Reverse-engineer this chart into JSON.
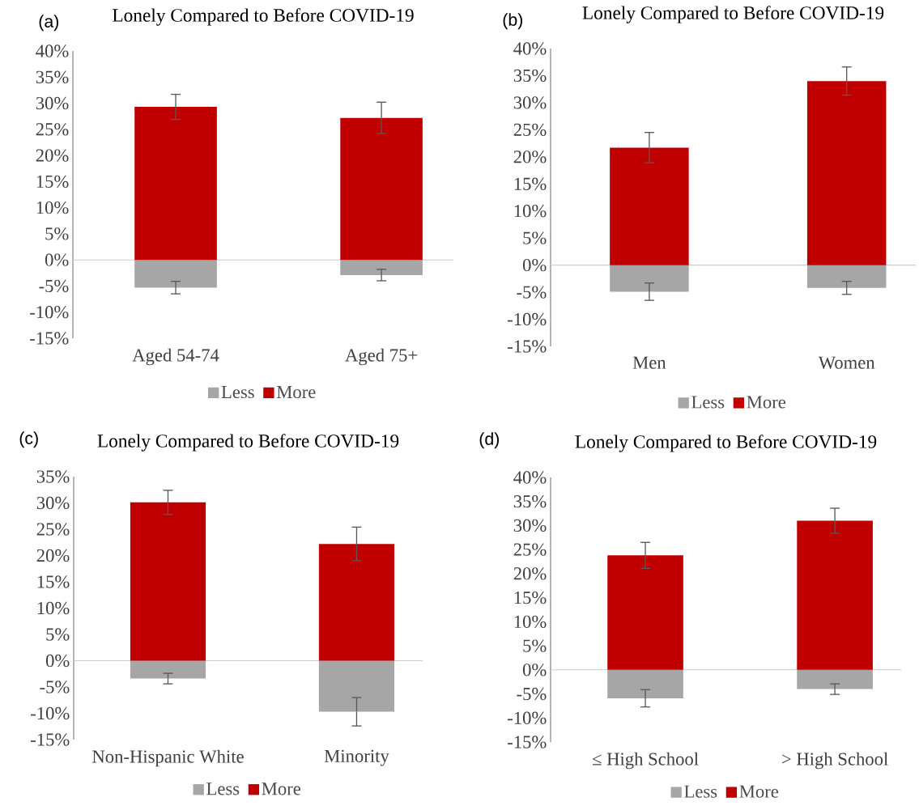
{
  "chart_data": [
    {
      "type": "bar",
      "title": "Lonely Compared to Before COVID-19",
      "annotations": [
        "(a)"
      ],
      "categories": [
        "Aged 54-74",
        "Aged 75+"
      ],
      "stacked": true,
      "legend": "bottom",
      "ylim": [
        -15,
        40
      ],
      "yticks": [
        {
          "value": -15,
          "label": "-15%"
        },
        {
          "value": -10,
          "label": "-10%"
        },
        {
          "value": -5,
          "label": "-5%"
        },
        {
          "value": 0,
          "label": "0%"
        },
        {
          "value": 5,
          "label": "5%"
        },
        {
          "value": 10,
          "label": "10%"
        },
        {
          "value": 15,
          "label": "15%"
        },
        {
          "value": 20,
          "label": "20%"
        },
        {
          "value": 25,
          "label": "25%"
        },
        {
          "value": 30,
          "label": "30%"
        },
        {
          "value": 35,
          "label": "35%"
        },
        {
          "value": 40,
          "label": "40%"
        }
      ],
      "series": [
        {
          "name": "Less",
          "color": "#a6a6a6",
          "values": [
            -5.3,
            -2.9
          ],
          "errors": [
            1.2,
            1.1
          ]
        },
        {
          "name": "More",
          "color": "#c00000",
          "values": [
            29.3,
            27.2
          ],
          "errors": [
            2.4,
            3.0
          ]
        }
      ]
    },
    {
      "type": "bar",
      "title": "Lonely Compared to Before COVID-19",
      "annotations": [
        "(b)"
      ],
      "categories": [
        "Men",
        "Women"
      ],
      "stacked": true,
      "legend": "bottom",
      "ylim": [
        -15,
        40
      ],
      "yticks": [
        {
          "value": -15,
          "label": "-15%"
        },
        {
          "value": -10,
          "label": "-10%"
        },
        {
          "value": -5,
          "label": "-5%"
        },
        {
          "value": 0,
          "label": "0%"
        },
        {
          "value": 5,
          "label": "5%"
        },
        {
          "value": 10,
          "label": "10%"
        },
        {
          "value": 15,
          "label": "15%"
        },
        {
          "value": 20,
          "label": "20%"
        },
        {
          "value": 25,
          "label": "25%"
        },
        {
          "value": 30,
          "label": "30%"
        },
        {
          "value": 35,
          "label": "35%"
        },
        {
          "value": 40,
          "label": "40%"
        }
      ],
      "series": [
        {
          "name": "Less",
          "color": "#a6a6a6",
          "values": [
            -4.9,
            -4.2
          ],
          "errors": [
            1.6,
            1.2
          ]
        },
        {
          "name": "More",
          "color": "#c00000",
          "values": [
            21.7,
            34.0
          ],
          "errors": [
            2.8,
            2.6
          ]
        }
      ]
    },
    {
      "type": "bar",
      "title": "Lonely Compared to Before COVID-19",
      "annotations": [
        "(c)"
      ],
      "categories": [
        "Non-Hispanic White",
        "Minority"
      ],
      "stacked": true,
      "legend": "bottom",
      "ylim": [
        -15,
        35
      ],
      "yticks": [
        {
          "value": -15,
          "label": "-15%"
        },
        {
          "value": -10,
          "label": "-10%"
        },
        {
          "value": -5,
          "label": "-5%"
        },
        {
          "value": 0,
          "label": "0%"
        },
        {
          "value": 5,
          "label": "5%"
        },
        {
          "value": 10,
          "label": "10%"
        },
        {
          "value": 15,
          "label": "15%"
        },
        {
          "value": 20,
          "label": "20%"
        },
        {
          "value": 25,
          "label": "25%"
        },
        {
          "value": 30,
          "label": "30%"
        },
        {
          "value": 35,
          "label": "35%"
        }
      ],
      "series": [
        {
          "name": "Less",
          "color": "#a6a6a6",
          "values": [
            -3.4,
            -9.7
          ],
          "errors": [
            1.0,
            2.7
          ]
        },
        {
          "name": "More",
          "color": "#c00000",
          "values": [
            30.1,
            22.2
          ],
          "errors": [
            2.3,
            3.2
          ]
        }
      ]
    },
    {
      "type": "bar",
      "title": "Lonely Compared to Before COVID-19",
      "annotations": [
        "(d)"
      ],
      "categories": [
        "≤ High School",
        "> High School"
      ],
      "stacked": true,
      "legend": "bottom",
      "ylim": [
        -15,
        40
      ],
      "yticks": [
        {
          "value": -15,
          "label": "-15%"
        },
        {
          "value": -10,
          "label": "-10%"
        },
        {
          "value": -5,
          "label": "-5%"
        },
        {
          "value": 0,
          "label": "0%"
        },
        {
          "value": 5,
          "label": "5%"
        },
        {
          "value": 10,
          "label": "10%"
        },
        {
          "value": 15,
          "label": "15%"
        },
        {
          "value": 20,
          "label": "20%"
        },
        {
          "value": 25,
          "label": "25%"
        },
        {
          "value": 30,
          "label": "30%"
        },
        {
          "value": 35,
          "label": "35%"
        },
        {
          "value": 40,
          "label": "40%"
        }
      ],
      "series": [
        {
          "name": "Less",
          "color": "#a6a6a6",
          "values": [
            -5.9,
            -4.0
          ],
          "errors": [
            1.8,
            1.1
          ]
        },
        {
          "name": "More",
          "color": "#c00000",
          "values": [
            23.8,
            31.0
          ],
          "errors": [
            2.7,
            2.6
          ]
        }
      ]
    }
  ]
}
